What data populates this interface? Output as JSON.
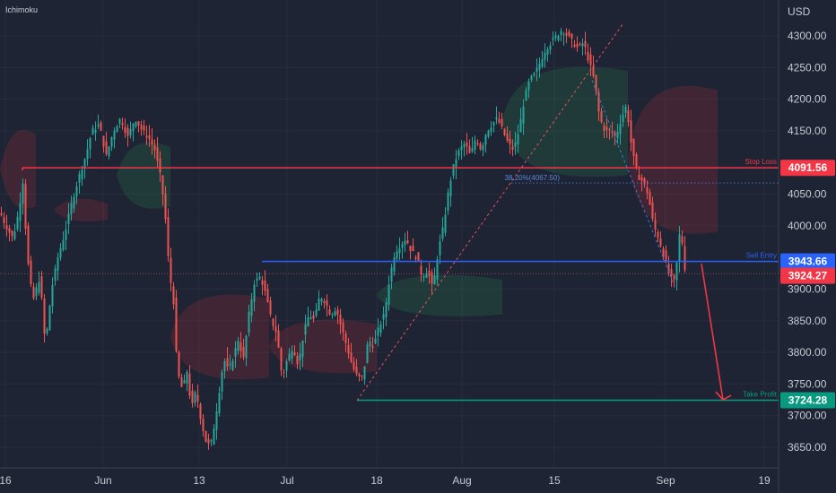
{
  "header": {
    "indicator": "Ichimoku"
  },
  "chart_data": {
    "type": "candlestick",
    "y_axis_unit": "USD",
    "ylim": [
      3620,
      4345
    ],
    "y_ticks": [
      {
        "value": 4300,
        "label": "4300.00"
      },
      {
        "value": 4250,
        "label": "4250.00"
      },
      {
        "value": 4200,
        "label": "4200.00"
      },
      {
        "value": 4150,
        "label": "4150.00"
      },
      {
        "value": 4050,
        "label": "4050.00"
      },
      {
        "value": 4000,
        "label": "4000.00"
      },
      {
        "value": 3900,
        "label": "3900.00"
      },
      {
        "value": 3850,
        "label": "3850.00"
      },
      {
        "value": 3800,
        "label": "3800.00"
      },
      {
        "value": 3750,
        "label": "3750.00"
      },
      {
        "value": 3700,
        "label": "3700.00"
      },
      {
        "value": 3650,
        "label": "3650.00"
      }
    ],
    "x_ticks": [
      "16",
      "Jun",
      "13",
      "Jul",
      "18",
      "Aug",
      "15",
      "Sep",
      "19"
    ],
    "price_path": [
      [
        0,
        4020
      ],
      [
        6,
        4000
      ],
      [
        14,
        3980
      ],
      [
        20,
        4020
      ],
      [
        25,
        4070
      ],
      [
        30,
        3950
      ],
      [
        36,
        3880
      ],
      [
        44,
        3920
      ],
      [
        50,
        3810
      ],
      [
        57,
        3900
      ],
      [
        64,
        3950
      ],
      [
        72,
        3990
      ],
      [
        80,
        4040
      ],
      [
        88,
        4080
      ],
      [
        95,
        4110
      ],
      [
        102,
        4150
      ],
      [
        110,
        4160
      ],
      [
        118,
        4110
      ],
      [
        126,
        4150
      ],
      [
        134,
        4170
      ],
      [
        142,
        4140
      ],
      [
        150,
        4170
      ],
      [
        158,
        4150
      ],
      [
        165,
        4140
      ],
      [
        172,
        4120
      ],
      [
        178,
        4080
      ],
      [
        183,
        4030
      ],
      [
        188,
        3930
      ],
      [
        193,
        3880
      ],
      [
        197,
        3770
      ],
      [
        203,
        3740
      ],
      [
        208,
        3770
      ],
      [
        213,
        3710
      ],
      [
        218,
        3740
      ],
      [
        224,
        3690
      ],
      [
        229,
        3660
      ],
      [
        234,
        3650
      ],
      [
        239,
        3690
      ],
      [
        244,
        3740
      ],
      [
        249,
        3790
      ],
      [
        254,
        3770
      ],
      [
        259,
        3790
      ],
      [
        265,
        3820
      ],
      [
        271,
        3790
      ],
      [
        277,
        3860
      ],
      [
        283,
        3910
      ],
      [
        290,
        3920
      ],
      [
        296,
        3890
      ],
      [
        302,
        3850
      ],
      [
        308,
        3830
      ],
      [
        314,
        3760
      ],
      [
        320,
        3790
      ],
      [
        326,
        3810
      ],
      [
        332,
        3780
      ],
      [
        338,
        3830
      ],
      [
        344,
        3860
      ],
      [
        350,
        3850
      ],
      [
        356,
        3890
      ],
      [
        362,
        3880
      ],
      [
        368,
        3860
      ],
      [
        374,
        3870
      ],
      [
        380,
        3840
      ],
      [
        386,
        3810
      ],
      [
        392,
        3780
      ],
      [
        398,
        3760
      ],
      [
        404,
        3760
      ],
      [
        410,
        3820
      ],
      [
        416,
        3810
      ],
      [
        422,
        3840
      ],
      [
        428,
        3860
      ],
      [
        434,
        3920
      ],
      [
        440,
        3960
      ],
      [
        446,
        3970
      ],
      [
        452,
        3980
      ],
      [
        458,
        3960
      ],
      [
        464,
        3950
      ],
      [
        470,
        3920
      ],
      [
        476,
        3930
      ],
      [
        482,
        3900
      ],
      [
        488,
        3960
      ],
      [
        494,
        4000
      ],
      [
        500,
        4060
      ],
      [
        506,
        4100
      ],
      [
        512,
        4120
      ],
      [
        518,
        4130
      ],
      [
        524,
        4110
      ],
      [
        530,
        4140
      ],
      [
        536,
        4120
      ],
      [
        542,
        4150
      ],
      [
        548,
        4160
      ],
      [
        554,
        4170
      ],
      [
        560,
        4150
      ],
      [
        566,
        4130
      ],
      [
        572,
        4120
      ],
      [
        578,
        4150
      ],
      [
        584,
        4200
      ],
      [
        590,
        4230
      ],
      [
        596,
        4240
      ],
      [
        602,
        4260
      ],
      [
        608,
        4280
      ],
      [
        614,
        4290
      ],
      [
        620,
        4300
      ],
      [
        626,
        4310
      ],
      [
        632,
        4300
      ],
      [
        638,
        4290
      ],
      [
        644,
        4280
      ],
      [
        650,
        4290
      ],
      [
        656,
        4260
      ],
      [
        662,
        4230
      ],
      [
        668,
        4170
      ],
      [
        674,
        4150
      ],
      [
        680,
        4150
      ],
      [
        686,
        4140
      ],
      [
        692,
        4170
      ],
      [
        698,
        4190
      ],
      [
        704,
        4120
      ],
      [
        710,
        4080
      ],
      [
        716,
        4070
      ],
      [
        722,
        4050
      ],
      [
        728,
        4000
      ],
      [
        734,
        3980
      ],
      [
        740,
        3950
      ],
      [
        746,
        3920
      ],
      [
        752,
        3910
      ],
      [
        758,
        4000
      ],
      [
        764,
        3920
      ]
    ],
    "cloud_segments": [
      {
        "x1": 0,
        "x2": 40,
        "top": 4150,
        "bottom": 4030,
        "color": "red"
      },
      {
        "x1": 60,
        "x2": 120,
        "top": 4040,
        "bottom": 4010,
        "color": "red"
      },
      {
        "x1": 130,
        "x2": 190,
        "top": 4130,
        "bottom": 4030,
        "color": "green"
      },
      {
        "x1": 190,
        "x2": 300,
        "top": 3890,
        "bottom": 3760,
        "color": "red"
      },
      {
        "x1": 300,
        "x2": 420,
        "top": 3850,
        "bottom": 3770,
        "color": "red"
      },
      {
        "x1": 420,
        "x2": 560,
        "top": 3920,
        "bottom": 3860,
        "color": "green"
      },
      {
        "x1": 560,
        "x2": 700,
        "top": 4250,
        "bottom": 4080,
        "color": "green"
      },
      {
        "x1": 700,
        "x2": 800,
        "top": 4220,
        "bottom": 3990,
        "color": "red"
      }
    ],
    "levels": [
      {
        "name": "Stop Loss",
        "value": 4091.56,
        "label": "4091.56",
        "color": "#f23645",
        "x_start": 25
      },
      {
        "name": "Sell Entry",
        "value": 3943.66,
        "label": "3943.66",
        "color": "#2962ff",
        "x_start": 292
      },
      {
        "name": "Take Profit",
        "value": 3724.28,
        "label": "3724.28",
        "color": "#089981",
        "x_start": 398
      }
    ],
    "fib_level": {
      "label": "38.20%(4067.50)",
      "value": 4067.5,
      "x_start": 710
    },
    "current_price": {
      "value": 3924.27,
      "label": "3924.27",
      "color": "#f23645"
    },
    "trendline": {
      "from": [
        398,
        3724
      ],
      "to": [
        695,
        4320
      ]
    },
    "arrow": {
      "from": [
        782,
        3940
      ],
      "to": [
        806,
        3725
      ],
      "color": "#f23645"
    }
  }
}
